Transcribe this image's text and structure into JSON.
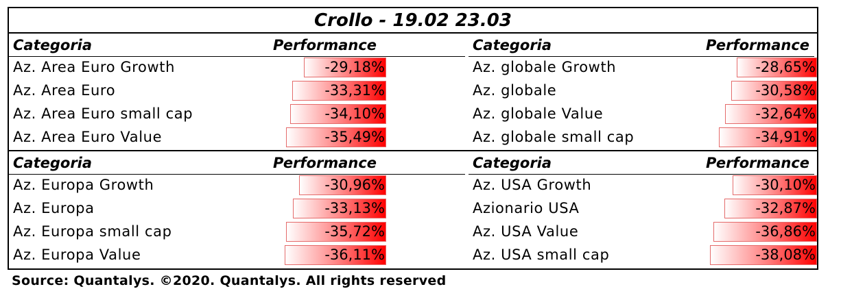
{
  "title": "Crollo - 19.02 23.03",
  "header": {
    "category": "Categoria",
    "performance": "Performance"
  },
  "source": "Source: Quantalys. ©2020. Quantalys. All rights reserved",
  "colors": {
    "bar_start": "#ffffff",
    "bar_end": "#ff0000",
    "border": "#000000"
  },
  "chart_data": {
    "type": "table",
    "title": "Crollo - 19.02 23.03",
    "columns": [
      "Categoria",
      "Performance"
    ],
    "groups": [
      {
        "rows": [
          {
            "category": "Az. Area Euro Growth",
            "value": -29.18,
            "label": "-29,18%"
          },
          {
            "category": "Az. Area Euro",
            "value": -33.31,
            "label": "-33,31%"
          },
          {
            "category": "Az. Area Euro small cap",
            "value": -34.1,
            "label": "-34,10%"
          },
          {
            "category": "Az. Area Euro Value",
            "value": -35.49,
            "label": "-35,49%"
          }
        ]
      },
      {
        "rows": [
          {
            "category": "Az. globale Growth",
            "value": -28.65,
            "label": "-28,65%"
          },
          {
            "category": "Az. globale",
            "value": -30.58,
            "label": "-30,58%"
          },
          {
            "category": "Az. globale Value",
            "value": -32.64,
            "label": "-32,64%"
          },
          {
            "category": "Az. globale small cap",
            "value": -34.91,
            "label": "-34,91%"
          }
        ]
      },
      {
        "rows": [
          {
            "category": "Az. Europa Growth",
            "value": -30.96,
            "label": "-30,96%"
          },
          {
            "category": "Az. Europa",
            "value": -33.13,
            "label": "-33,13%"
          },
          {
            "category": "Az. Europa small cap",
            "value": -35.72,
            "label": "-35,72%"
          },
          {
            "category": "Az. Europa Value",
            "value": -36.11,
            "label": "-36,11%"
          }
        ]
      },
      {
        "rows": [
          {
            "category": "Az. USA Growth",
            "value": -30.1,
            "label": "-30,10%"
          },
          {
            "category": "Azionario USA",
            "value": -32.87,
            "label": "-32,87%"
          },
          {
            "category": "Az. USA Value",
            "value": -36.86,
            "label": "-36,86%"
          },
          {
            "category": "Az. USA small cap",
            "value": -38.08,
            "label": "-38,08%"
          }
        ]
      }
    ]
  }
}
